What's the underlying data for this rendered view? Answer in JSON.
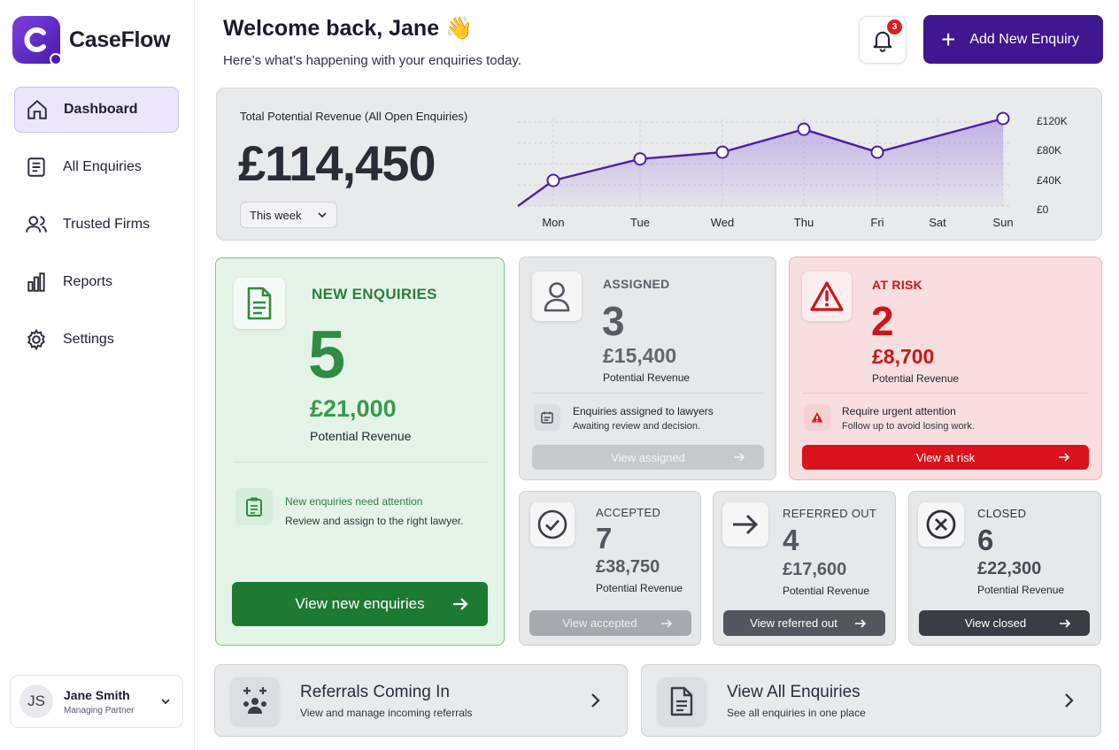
{
  "app": {
    "name": "CaseFlow"
  },
  "sidebar": {
    "items": [
      {
        "label": "Dashboard",
        "icon": "home-icon",
        "active": true
      },
      {
        "label": "All Enquiries",
        "icon": "document-icon",
        "active": false
      },
      {
        "label": "Trusted Firms",
        "icon": "users-icon",
        "active": false
      },
      {
        "label": "Reports",
        "icon": "bar-chart-icon",
        "active": false
      },
      {
        "label": "Settings",
        "icon": "gear-icon",
        "active": false
      }
    ],
    "user": {
      "initials": "JS",
      "name": "Jane Smith",
      "role": "Managing Partner"
    }
  },
  "header": {
    "welcome": "Welcome back, Jane 👋",
    "subtitle": "Here’s what’s happening with your enquiries today.",
    "notifications_count": "3",
    "add_button": "Add New Enquiry"
  },
  "revenue": {
    "label": "Total Potential Revenue (All Open Enquiries)",
    "value": "£114,450",
    "period": "This week",
    "accent": "#4b21a3"
  },
  "chart_data": {
    "type": "area",
    "categories": [
      "Mon",
      "Tue",
      "Wed",
      "Thu",
      "Fri",
      "Sat",
      "Sun"
    ],
    "series": [
      {
        "values": [
          38000,
          70000,
          80000,
          114000,
          80000,
          null,
          130000
        ]
      }
    ],
    "y_ticks": [
      "£0",
      "£40K",
      "£80K",
      "£120K"
    ],
    "ylim": [
      0,
      130000
    ],
    "grid": true
  },
  "cards": {
    "new": {
      "label": "NEW ENQUIRIES",
      "count": "5",
      "money": "£21,000",
      "sub": "Potential Revenue",
      "note_title": "New enquiries need attention",
      "note_text": "Review and assign to the right lawyer.",
      "button": "View new enquiries",
      "color": "#1d7a32"
    },
    "assigned": {
      "label": "ASSIGNED",
      "count": "3",
      "money": "£15,400",
      "sub": "Potential Revenue",
      "note_title": "Enquiries assigned to lawyers",
      "note_text": "Awaiting review and decision.",
      "button": "View assigned"
    },
    "risk": {
      "label": "AT RISK",
      "count": "2",
      "money": "£8,700",
      "sub": "Potential Revenue",
      "note_title": "Require urgent attention",
      "note_text": "Follow up to avoid losing work.",
      "button": "View at risk",
      "color": "#d9121b"
    },
    "accepted": {
      "label": "ACCEPTED",
      "count": "7",
      "money": "£38,750",
      "sub": "Potential Revenue",
      "button": "View accepted"
    },
    "referred": {
      "label": "REFERRED OUT",
      "count": "4",
      "money": "£17,600",
      "sub": "Potential Revenue",
      "button": "View referred out"
    },
    "closed": {
      "label": "CLOSED",
      "count": "6",
      "money": "£22,300",
      "sub": "Potential Revenue",
      "button": "View closed"
    }
  },
  "links": {
    "referrals": {
      "title": "Referrals Coming In",
      "sub": "View and manage incoming referrals"
    },
    "all": {
      "title": "View All Enquiries",
      "sub": "See all enquiries in one place"
    }
  }
}
